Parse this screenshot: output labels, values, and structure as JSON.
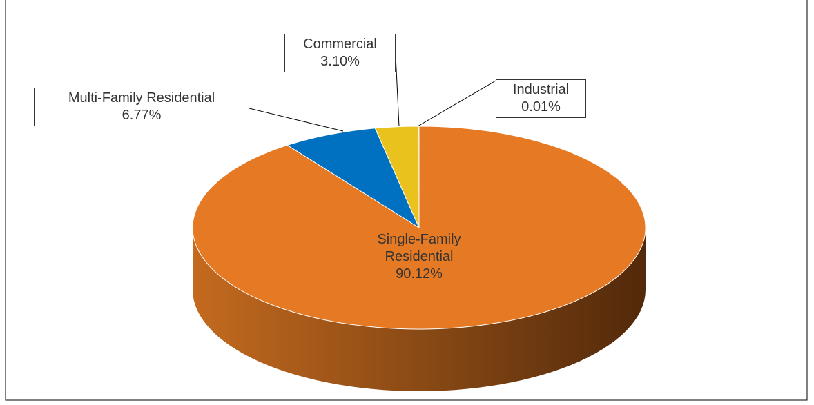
{
  "chart_data": {
    "type": "pie3d",
    "categories": [
      "Single-Family Residential",
      "Multi-Family Residential",
      "Commercial",
      "Industrial"
    ],
    "values": [
      90.12,
      6.77,
      3.1,
      0.01
    ],
    "value_labels": [
      "90.12%",
      "6.77%",
      "3.10%",
      "0.01%"
    ],
    "colors": [
      "#e67a24",
      "#0070c0",
      "#e9c21e",
      "#8faadc"
    ]
  }
}
